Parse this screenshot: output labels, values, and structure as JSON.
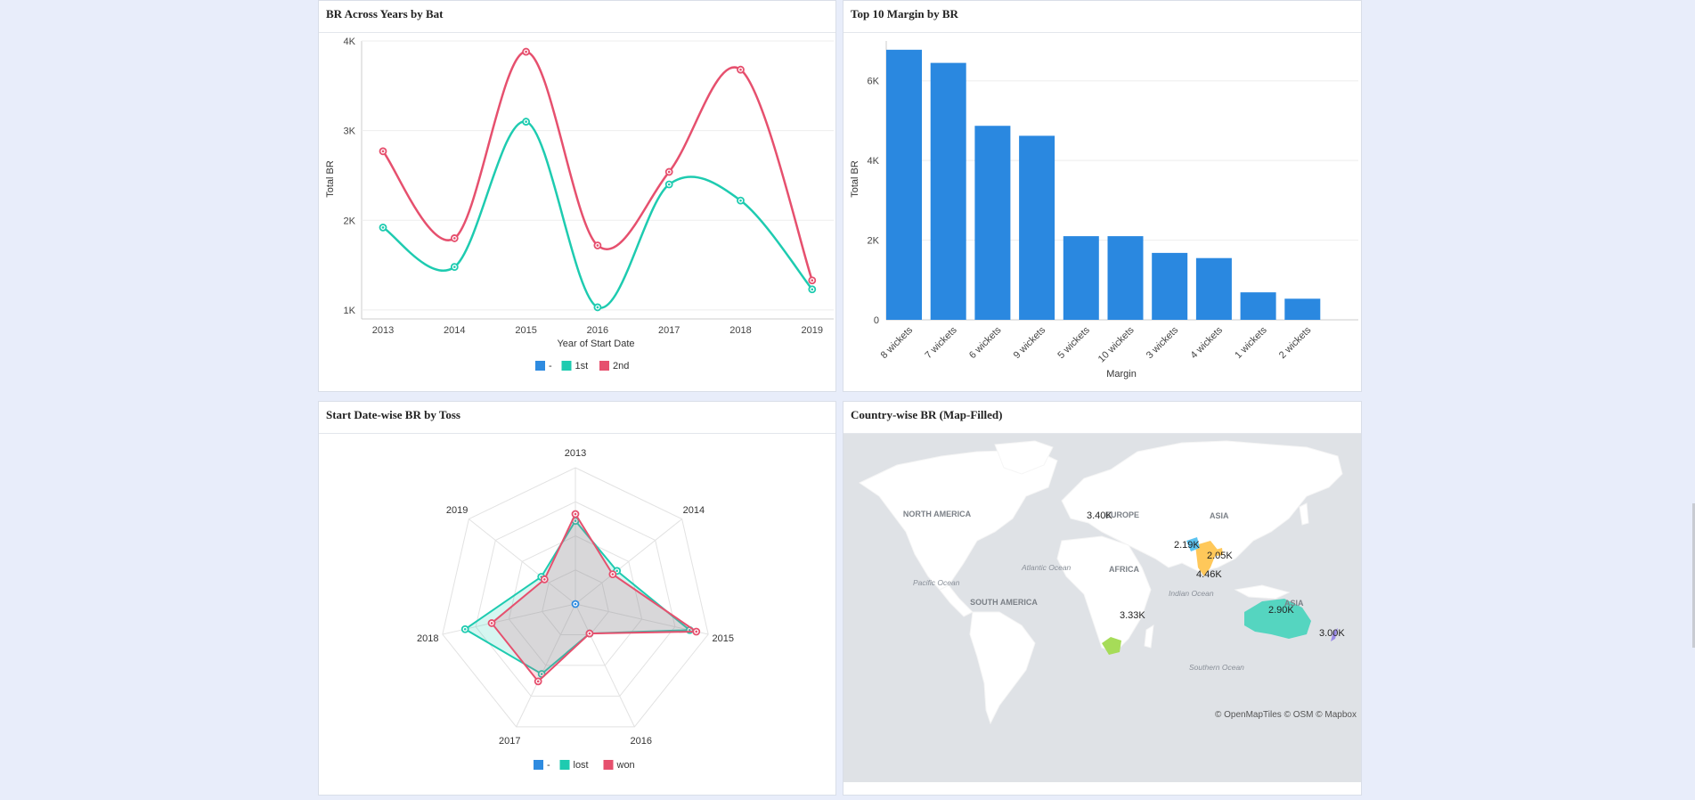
{
  "panels": {
    "p1_title": "BR Across Years by Bat",
    "p2_title": "Top 10 Margin by BR",
    "p3_title": "Start Date-wise BR by Toss",
    "p4_title": "Country-wise BR (Map-Filled)"
  },
  "colors": {
    "blue": "#2e8be0",
    "teal": "#1ecbb0",
    "pink": "#e6506e",
    "bar": "#2a88e0"
  },
  "map": {
    "labels": {
      "north_america": "NORTH AMERICA",
      "europe": "EUROPE",
      "asia": "ASIA",
      "africa": "AFRICA",
      "south_america": "SOUTH AMERICA",
      "asia2": "ASIA",
      "atlantic": "Atlantic Ocean",
      "pacific": "Pacific Ocean",
      "indian": "Indian Ocean",
      "southern": "Southern Ocean"
    },
    "values": {
      "v1": "3.40K",
      "v2": "2.19K",
      "v3": "2.05K",
      "v4": "4.46K",
      "v5": "3.33K",
      "v6": "2.90K",
      "v7": "3.00K"
    },
    "attribution": "© OpenMapTiles © OSM © Mapbox"
  },
  "chart_data": [
    {
      "type": "line",
      "title": "BR Across Years by Bat",
      "xlabel": "Year of Start Date",
      "ylabel": "Total BR",
      "x": [
        "2013",
        "2014",
        "2015",
        "2016",
        "2017",
        "2018",
        "2019"
      ],
      "ylim": [
        900,
        4000
      ],
      "yticks": [
        "1K",
        "2K",
        "3K",
        "4K"
      ],
      "legend": [
        "-",
        "1st",
        "2nd"
      ],
      "series": [
        {
          "name": "1st",
          "color": "#1ecbb0",
          "values": [
            1920,
            1480,
            3100,
            1030,
            2400,
            2220,
            1230
          ]
        },
        {
          "name": "2nd",
          "color": "#e6506e",
          "values": [
            2770,
            1800,
            3880,
            1720,
            2540,
            3680,
            1330
          ]
        }
      ]
    },
    {
      "type": "bar",
      "title": "Top 10 Margin by BR",
      "xlabel": "Margin",
      "ylabel": "Total BR",
      "categories": [
        "8 wickets",
        "7 wickets",
        "6 wickets",
        "9 wickets",
        "5 wickets",
        "10 wickets",
        "3 wickets",
        "4 wickets",
        "1 wickets",
        "2 wickets"
      ],
      "values": [
        6780,
        6450,
        4870,
        4620,
        2100,
        2100,
        1680,
        1550,
        690,
        530
      ],
      "ylim": [
        0,
        7000
      ],
      "yticks": [
        "0",
        "2K",
        "4K",
        "6K"
      ]
    },
    {
      "type": "radar",
      "title": "Start Date-wise BR by Toss",
      "categories": [
        "2013",
        "2014",
        "2015",
        "2016",
        "2017",
        "2018",
        "2019"
      ],
      "max": 100,
      "legend": [
        "-",
        "lost",
        "won"
      ],
      "series": [
        {
          "name": "lost",
          "color": "#1ecbb0",
          "values": [
            61,
            39,
            86,
            24,
            57,
            83,
            32
          ]
        },
        {
          "name": "won",
          "color": "#e6506e",
          "values": [
            66,
            35,
            91,
            24,
            63,
            63,
            29
          ]
        }
      ]
    }
  ]
}
